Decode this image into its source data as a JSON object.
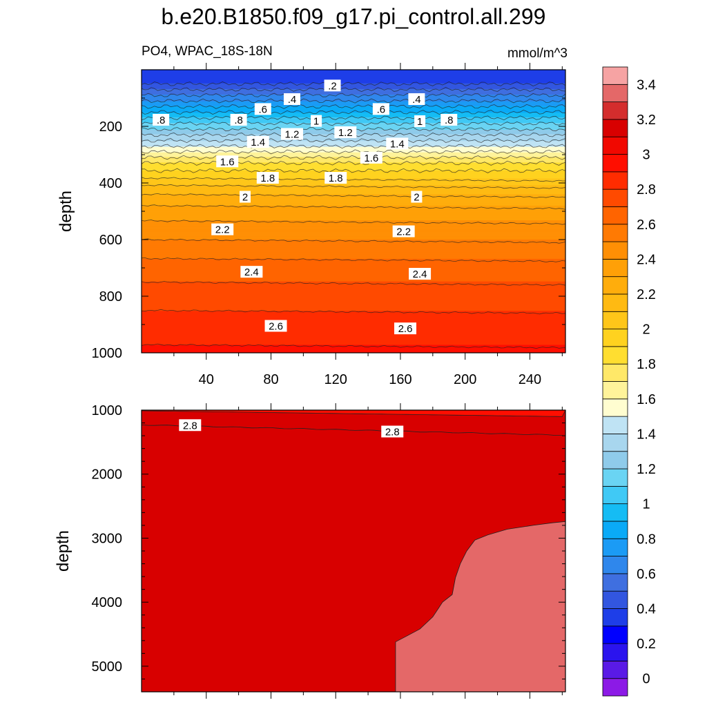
{
  "title": "b.e20.B1850.f09_g17.pi_control.all.299",
  "subtitle_left": "PO4, WPAC_18S-18N",
  "subtitle_right": "mmol/m^3",
  "colors": {
    "levels": [
      "#8c1ae6",
      "#5a1ae6",
      "#2b14ee",
      "#0000ff",
      "#1e3ee8",
      "#3256e0",
      "#3f6fe0",
      "#2f87ec",
      "#1b9bf5",
      "#0aaaf7",
      "#15bcf4",
      "#40c9f5",
      "#6ad4f3",
      "#8fcbea",
      "#a8d6ee",
      "#bfe3f4",
      "#fffdd0",
      "#fff39a",
      "#ffe868",
      "#ffde30",
      "#ffd21f",
      "#ffc619",
      "#ffba12",
      "#ffad0c",
      "#ffa007",
      "#ff8f05",
      "#ff7a03",
      "#ff6400",
      "#ff4a00",
      "#ff2c00",
      "#ff0e00",
      "#f10800",
      "#d80000",
      "#d42d2d",
      "#e46868",
      "#f6a3a3"
    ]
  },
  "chart_data": [
    {
      "type": "contour",
      "panel": "upper",
      "variable": "PO4",
      "xlabel": "",
      "ylabel": "depth",
      "xlim": [
        0,
        262
      ],
      "ylim": [
        1000,
        0
      ],
      "x_ticks": [
        40,
        80,
        120,
        160,
        200,
        240
      ],
      "y_ticks": [
        200,
        400,
        600,
        800,
        1000
      ],
      "profile_depth": [
        0,
        50,
        90,
        130,
        170,
        210,
        250,
        290,
        330,
        370,
        420,
        500,
        600,
        700,
        800,
        900,
        1000
      ],
      "profile_value": [
        0.1,
        0.2,
        0.4,
        0.6,
        0.8,
        1.0,
        1.2,
        1.4,
        1.6,
        1.75,
        1.95,
        2.15,
        2.3,
        2.45,
        2.55,
        2.65,
        2.72
      ],
      "contour_labels": [
        {
          "text": ".2",
          "x": 118,
          "depth": 57
        },
        {
          "text": ".4",
          "x": 93,
          "depth": 105
        },
        {
          "text": ".4",
          "x": 170,
          "depth": 105
        },
        {
          "text": ".6",
          "x": 75,
          "depth": 140
        },
        {
          "text": ".6",
          "x": 148,
          "depth": 140
        },
        {
          "text": ".8",
          "x": 12,
          "depth": 178
        },
        {
          "text": ".8",
          "x": 60,
          "depth": 178
        },
        {
          "text": ".8",
          "x": 190,
          "depth": 178
        },
        {
          "text": "1",
          "x": 108,
          "depth": 182
        },
        {
          "text": "1",
          "x": 172,
          "depth": 183
        },
        {
          "text": "1.2",
          "x": 93,
          "depth": 228
        },
        {
          "text": "1.2",
          "x": 126,
          "depth": 222
        },
        {
          "text": "1.4",
          "x": 72,
          "depth": 256
        },
        {
          "text": "1.4",
          "x": 158,
          "depth": 262
        },
        {
          "text": "1.6",
          "x": 53,
          "depth": 325
        },
        {
          "text": "1.6",
          "x": 142,
          "depth": 312
        },
        {
          "text": "1.8",
          "x": 78,
          "depth": 383
        },
        {
          "text": "1.8",
          "x": 120,
          "depth": 383
        },
        {
          "text": "2",
          "x": 64,
          "depth": 450
        },
        {
          "text": "2",
          "x": 170,
          "depth": 450
        },
        {
          "text": "2.2",
          "x": 50,
          "depth": 565
        },
        {
          "text": "2.2",
          "x": 162,
          "depth": 572
        },
        {
          "text": "2.4",
          "x": 68,
          "depth": 715
        },
        {
          "text": "2.4",
          "x": 172,
          "depth": 722
        },
        {
          "text": "2.6",
          "x": 83,
          "depth": 906
        },
        {
          "text": "2.6",
          "x": 163,
          "depth": 915
        }
      ]
    },
    {
      "type": "contour",
      "panel": "lower",
      "variable": "PO4",
      "xlabel": "",
      "ylabel": "depth",
      "xlim": [
        0,
        262
      ],
      "ylim": [
        5400,
        1000
      ],
      "y_ticks": [
        1000,
        2000,
        3000,
        4000,
        5000
      ],
      "regions": [
        {
          "level_range": [
            2.6,
            2.8
          ],
          "description": "thin band near top"
        },
        {
          "level_range": [
            2.8,
            3.0
          ],
          "description": "bulk"
        },
        {
          "level_range": [
            3.0,
            3.2
          ],
          "description": "east deep region"
        }
      ],
      "contour_labels": [
        {
          "text": "2.8",
          "x": 30,
          "depth": 1240
        },
        {
          "text": "2.8",
          "x": 155,
          "depth": 1340
        }
      ]
    }
  ],
  "colorbar": {
    "labels": [
      "0",
      "0.2",
      "0.4",
      "0.6",
      "0.8",
      "1",
      "1.2",
      "1.4",
      "1.6",
      "1.8",
      "2",
      "2.2",
      "2.4",
      "2.6",
      "2.8",
      "3",
      "3.2",
      "3.4"
    ]
  }
}
